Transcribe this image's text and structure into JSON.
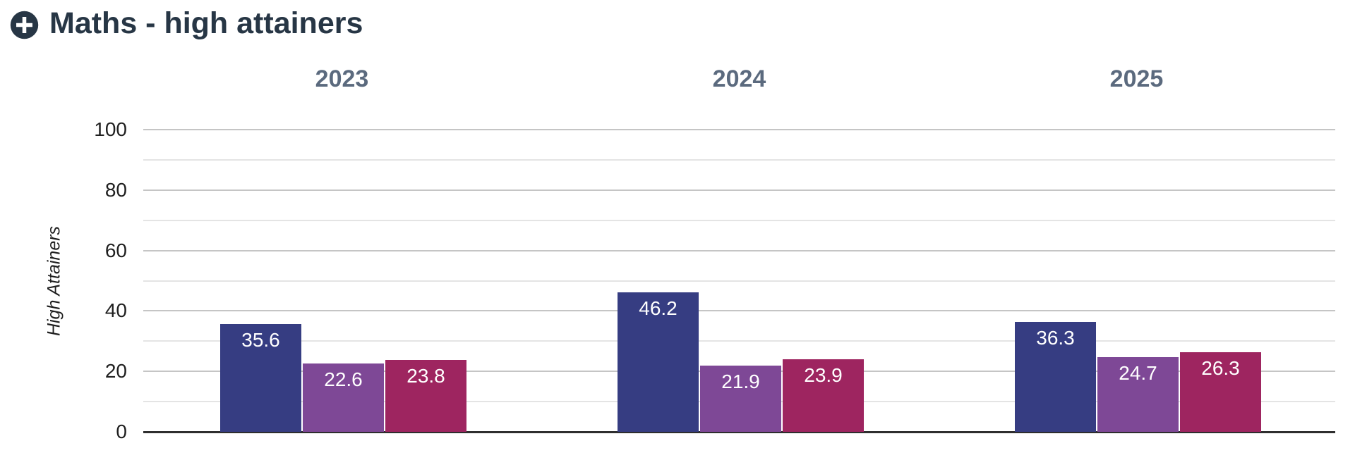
{
  "header": {
    "title": "Maths - high attainers",
    "icon": "plus-circle-icon"
  },
  "chart_data": {
    "type": "bar",
    "title": "Maths - high attainers",
    "categories": [
      "2023",
      "2024",
      "2025"
    ],
    "series": [
      {
        "color": "#363d82",
        "values": [
          35.6,
          46.2,
          36.3
        ]
      },
      {
        "color": "#7e4896",
        "values": [
          22.6,
          21.9,
          24.7
        ]
      },
      {
        "color": "#9e2560",
        "values": [
          23.8,
          23.9,
          26.3
        ]
      }
    ],
    "value_labels_shown": true,
    "xlabel": "",
    "ylabel": "High Attainers",
    "ylim": [
      0,
      100
    ],
    "yticks": [
      0,
      20,
      40,
      60,
      80,
      100
    ],
    "minor_gridlines": [
      10,
      30,
      50,
      70,
      90
    ],
    "grid": true,
    "legend_position": "none"
  },
  "colors": {
    "title": "#273645",
    "year_label": "#5b6a7e",
    "tick_label": "#1f1f1f",
    "major_grid": "#c5c5c5",
    "minor_grid": "#e4e4e4",
    "axis_line": "#2e2e2e",
    "value_label": "#ffffff",
    "background": "#ffffff"
  }
}
